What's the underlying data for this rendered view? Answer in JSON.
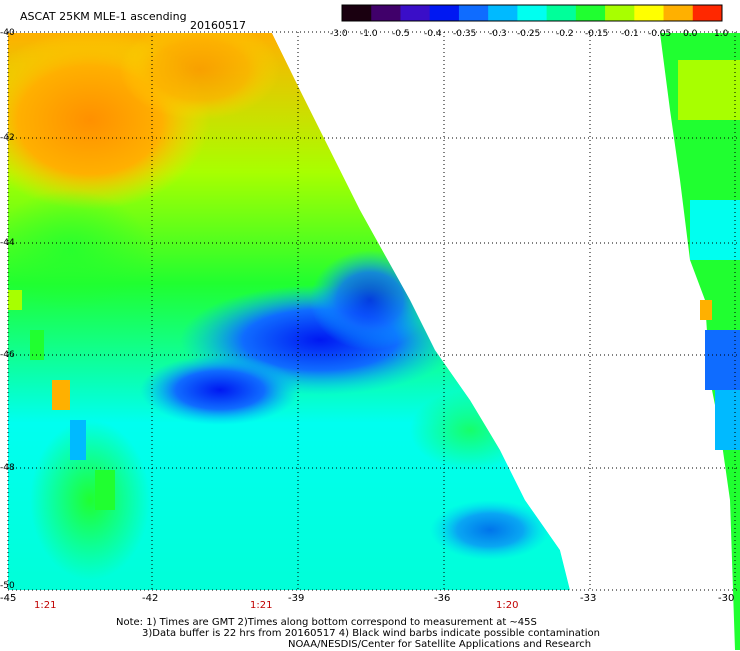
{
  "header": {
    "title": "ASCAT 25KM MLE-1 ascending",
    "date": "20160517"
  },
  "colorbar": {
    "labels": [
      "-3.0",
      "-1.0",
      "-0.5",
      "-0.4",
      "-0.35",
      "-0.3",
      "-0.25",
      "-0.2",
      "-0.15",
      "-0.1",
      "-0.05",
      "0.0",
      "1.0"
    ],
    "colors": [
      "#1a0010",
      "#40006a",
      "#3a0ec8",
      "#0018f2",
      "#0f6cff",
      "#00baff",
      "#00fff0",
      "#00ff9a",
      "#20ff30",
      "#a8ff00",
      "#ffff00",
      "#ffb000",
      "#ff2800"
    ]
  },
  "axes": {
    "lat_labels": [
      "-40",
      "-42",
      "-44",
      "-46",
      "-48",
      "-50"
    ],
    "lon_labels": [
      "-45",
      "-42",
      "-39",
      "-36",
      "-33",
      "-30"
    ]
  },
  "times": [
    "1:21",
    "1:21",
    "1:20"
  ],
  "notes": {
    "line1": "Note: 1) Times are GMT 2)Times along bottom correspond to measurement at ~45S",
    "line2": "3)Data buffer is 22 hrs from 20160517 4) Black wind barbs indicate possible contamination",
    "line3": "NOAA/NESDIS/Center for Satellite Applications and Research"
  }
}
